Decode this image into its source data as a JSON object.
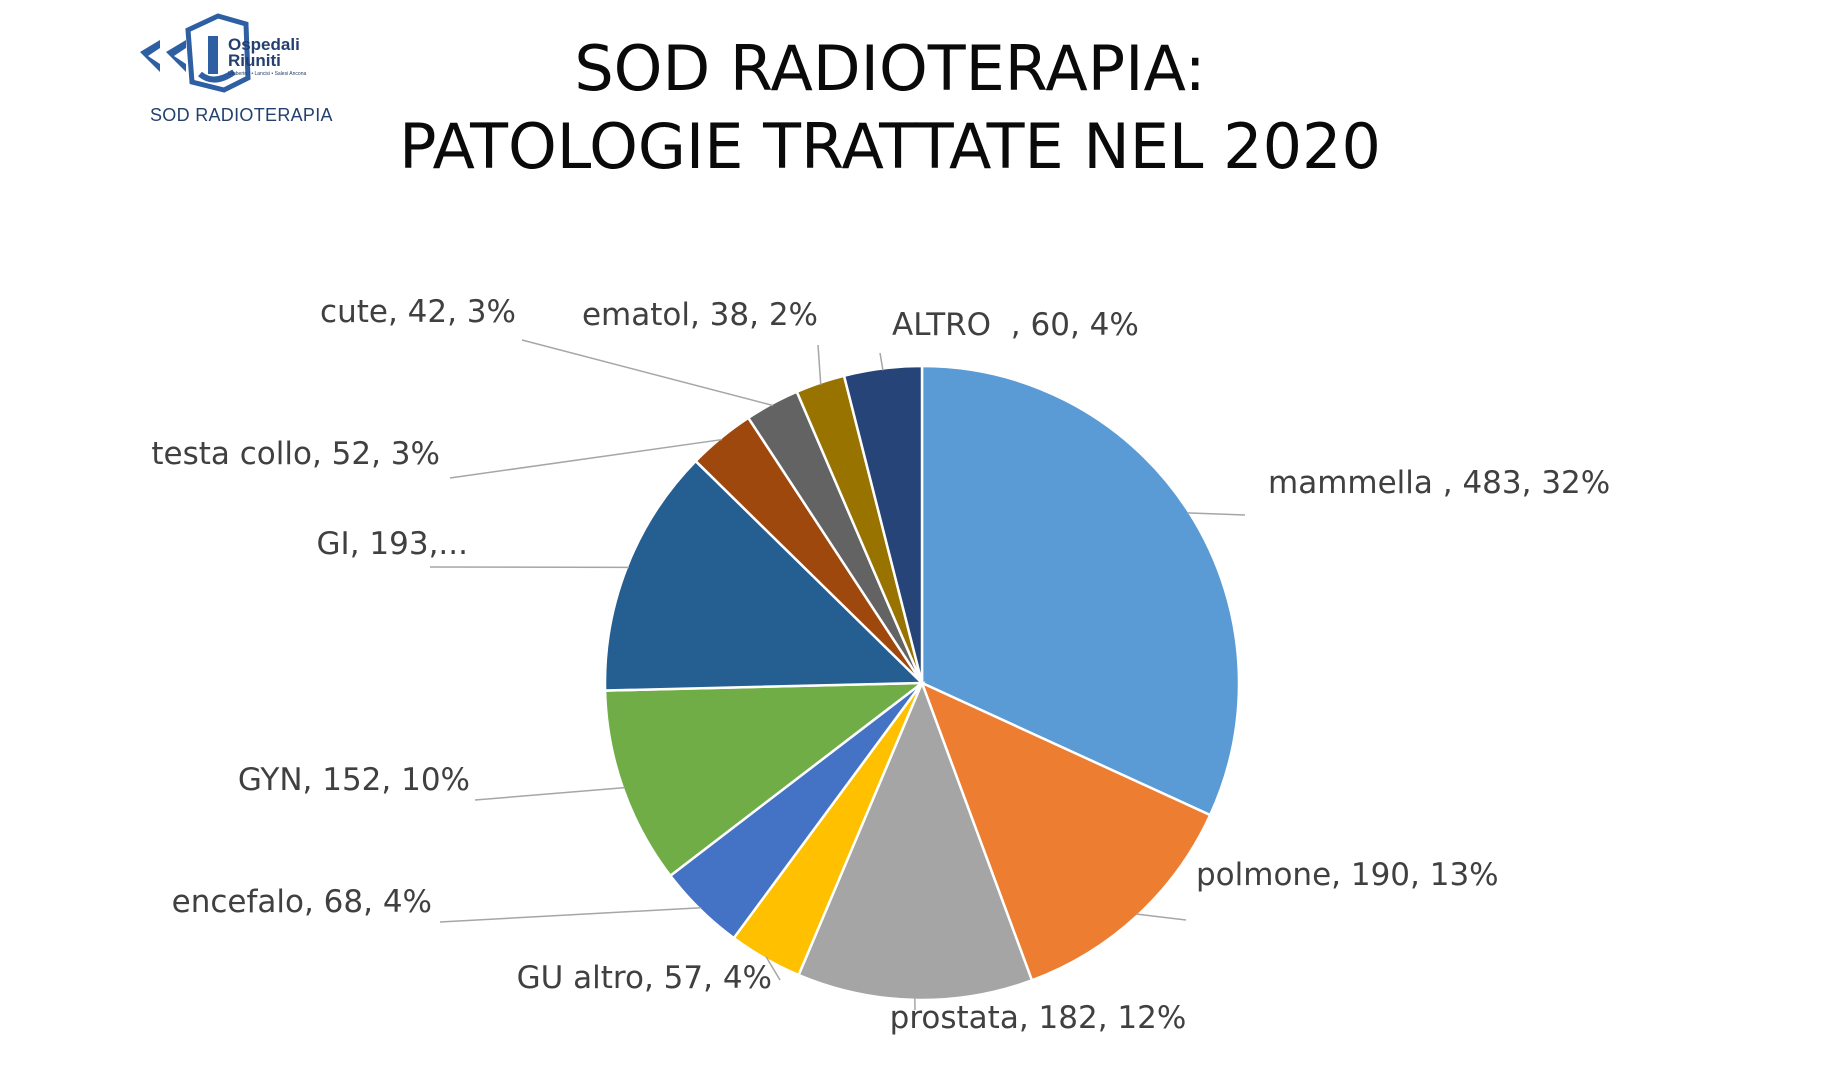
{
  "header": {
    "logo_lines": [
      "Ospedali",
      "Riuniti"
    ],
    "logo_fine_print": "Umberto I • Lancisi • Salesi  Ancona",
    "caption": "SOD RADIOTERAPIA"
  },
  "title": {
    "line1": "SOD RADIOTERAPIA:",
    "line2": "PATOLOGIE TRATTATE NEL 2020"
  },
  "chart_data": {
    "type": "pie",
    "title": "SOD RADIOTERAPIA: PATOLOGIE TRATTATE NEL 2020",
    "start_angle_deg": 0,
    "direction": "clockwise",
    "slices": [
      {
        "name": "mammella ",
        "value": 483,
        "percent": "32%",
        "label": "mammella , 483, 32%",
        "color": "#5b9bd5"
      },
      {
        "name": "polmone",
        "value": 190,
        "percent": "13%",
        "label": "polmone, 190, 13%",
        "color": "#ed7d31"
      },
      {
        "name": "prostata",
        "value": 182,
        "percent": "12%",
        "label": "prostata, 182, 12%",
        "color": "#a5a5a5"
      },
      {
        "name": "GU altro",
        "value": 57,
        "percent": "4%",
        "label": "GU altro, 57, 4%",
        "color": "#ffc000"
      },
      {
        "name": "encefalo",
        "value": 68,
        "percent": "4%",
        "label": "encefalo, 68, 4%",
        "color": "#4472c4"
      },
      {
        "name": "GYN",
        "value": 152,
        "percent": "10%",
        "label": "GYN, 152, 10%",
        "color": "#70ad47"
      },
      {
        "name": "GI",
        "value": 193,
        "percent": "",
        "label": "GI, 193,...",
        "color": "#255e91"
      },
      {
        "name": "testa collo",
        "value": 52,
        "percent": "3%",
        "label": "testa collo, 52, 3%",
        "color": "#9e480e"
      },
      {
        "name": "cute",
        "value": 42,
        "percent": "3%",
        "label": "cute, 42, 3%",
        "color": "#636363"
      },
      {
        "name": "ematol",
        "value": 38,
        "percent": "2%",
        "label": "ematol, 38, 2%",
        "color": "#997300"
      },
      {
        "name": "ALTRO  ",
        "value": 60,
        "percent": "4%",
        "label": "ALTRO  , 60, 4%",
        "color": "#264478"
      }
    ]
  }
}
